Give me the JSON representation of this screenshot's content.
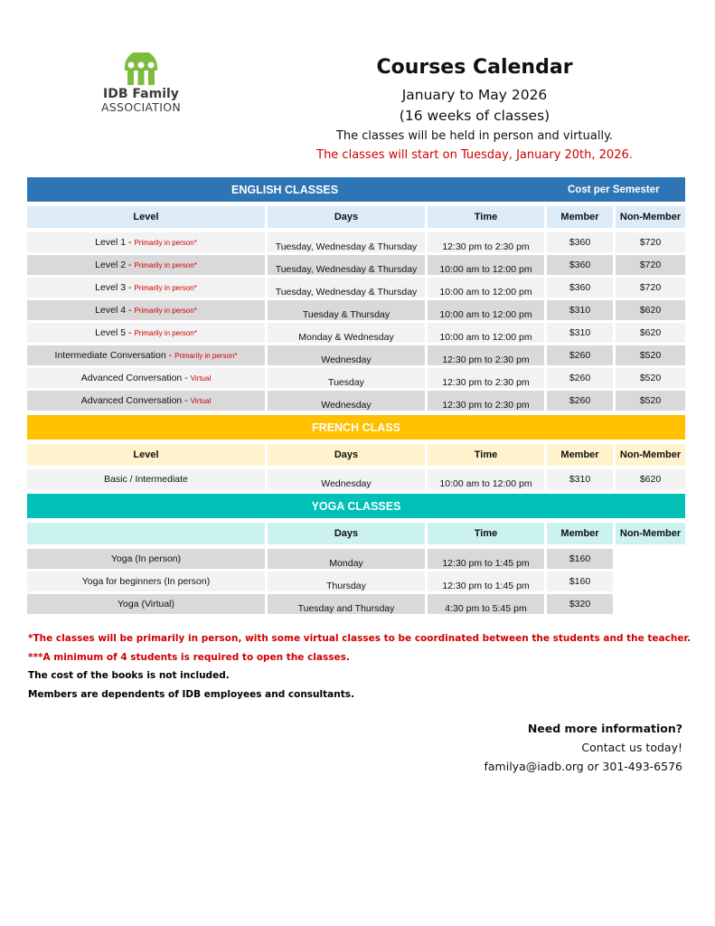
{
  "logo": {
    "line1": "IDB Family",
    "line2": "ASSOCIATION",
    "color": "#7dbb3f"
  },
  "header": {
    "title": "Courses Calendar",
    "dates": "January to May 2026",
    "weeks": "(16 weeks of classes)",
    "mode": "The classes will be held in person and virtually.",
    "start": "The classes will start on Tuesday, January 20th, 2026."
  },
  "columns": {
    "level": "Level",
    "days": "Days",
    "time": "Time",
    "member": "Member",
    "nonmember": "Non-Member"
  },
  "english": {
    "title": "ENGLISH CLASSES",
    "cost": "Cost per Semester",
    "color": "#2e75b6",
    "header_bg": "#ddebf7",
    "rows": [
      {
        "level": "Level 1 -",
        "note": "Primarily in person*",
        "days": "Tuesday, Wednesday & Thursday",
        "time": "12:30 pm to 2:30 pm",
        "member": "$360",
        "nonmember": "$720"
      },
      {
        "level": "Level 2 -",
        "note": "Primarily in person*",
        "days": "Tuesday, Wednesday & Thursday",
        "time": "10:00 am to 12:00 pm",
        "member": "$360",
        "nonmember": "$720"
      },
      {
        "level": "Level 3 -",
        "note": "Primarily in person*",
        "days": "Tuesday, Wednesday & Thursday",
        "time": "10:00 am to 12:00 pm",
        "member": "$360",
        "nonmember": "$720"
      },
      {
        "level": "Level 4 -",
        "note": "Primarily in person*",
        "days": "Tuesday & Thursday",
        "time": "10:00 am to 12:00 pm",
        "member": "$310",
        "nonmember": "$620"
      },
      {
        "level": "Level 5 -",
        "note": "Primarily in person*",
        "days": "Monday & Wednesday",
        "time": "10:00 am to 12:00 pm",
        "member": "$310",
        "nonmember": "$620"
      },
      {
        "level": "Intermediate Conversation -",
        "note": "Primarily in person*",
        "days": "Wednesday",
        "time": "12:30 pm to 2:30 pm",
        "member": "$260",
        "nonmember": "$520"
      },
      {
        "level": "Advanced Conversation -",
        "note": "Virtual",
        "days": "Tuesday",
        "time": "12:30 pm to 2:30 pm",
        "member": "$260",
        "nonmember": "$520"
      },
      {
        "level": "Advanced Conversation -",
        "note": "Virtual",
        "days": "Wednesday",
        "time": "12:30 pm to 2:30 pm",
        "member": "$260",
        "nonmember": "$520"
      }
    ]
  },
  "french": {
    "title": "FRENCH CLASS",
    "color": "#ffc000",
    "header_bg": "#fff2cc",
    "rows": [
      {
        "level": "Basic / Intermediate",
        "note": "",
        "days": "Wednesday",
        "time": "10:00 am to 12:00 pm",
        "member": "$310",
        "nonmember": "$620"
      }
    ]
  },
  "yoga": {
    "title": "YOGA CLASSES",
    "color": "#00c0b8",
    "header_bg": "#ccf2f0",
    "rows": [
      {
        "level": "Yoga (In person)",
        "note": "",
        "days": "Monday",
        "time": "12:30 pm to 1:45 pm",
        "member": "$160",
        "nonmember": ""
      },
      {
        "level": "Yoga for beginners (In person)",
        "note": "",
        "days": "Thursday",
        "time": "12:30 pm to 1:45 pm",
        "member": "$160",
        "nonmember": ""
      },
      {
        "level": "Yoga (Virtual)",
        "note": "",
        "days": "Tuesday and Thursday",
        "time": "4:30 pm to 5:45 pm",
        "member": "$320",
        "nonmember": ""
      }
    ]
  },
  "notes": [
    "*The classes will be primarily in person, with some virtual classes to be coordinated between the students and the teacher.",
    "***A minimum of 4 students is required to open the classes.",
    "The cost of the books is not included.",
    "Members are dependents of IDB employees and consultants."
  ],
  "contact": {
    "heading": "Need more information?",
    "line": "Contact us today!",
    "details": "familya@iadb.org or 301-493-6576"
  }
}
